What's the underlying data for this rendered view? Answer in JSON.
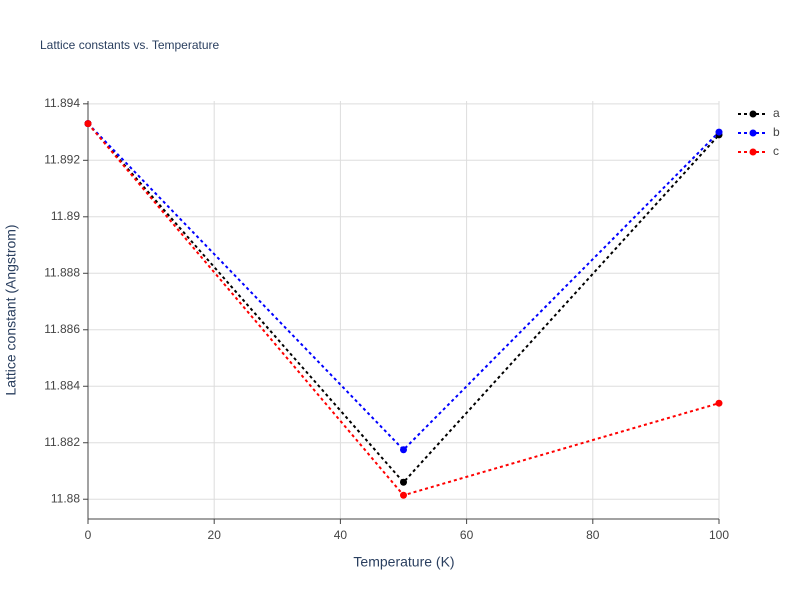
{
  "chart_data": {
    "type": "line",
    "title": "Lattice constants vs. Temperature",
    "x_label": "Temperature (K)",
    "y_label": "Lattice constant (Angstrom)",
    "x": [
      0,
      50,
      100
    ],
    "series": [
      {
        "name": "a",
        "color": "#000000",
        "values": [
          11.8933,
          11.8806,
          11.8929
        ]
      },
      {
        "name": "b",
        "color": "#0000ff",
        "values": [
          11.8933,
          11.88175,
          11.893
        ]
      },
      {
        "name": "c",
        "color": "#ff0000",
        "values": [
          11.8933,
          11.88014,
          11.8834
        ]
      }
    ],
    "xlim": [
      0,
      100
    ],
    "xticks": [
      0,
      20,
      40,
      60,
      80,
      100
    ],
    "ylim": [
      11.8793,
      11.8941
    ],
    "yticks": [
      11.88,
      11.882,
      11.884,
      11.886,
      11.888,
      11.89,
      11.892,
      11.894
    ],
    "grid": true,
    "legend": "top-right",
    "line_style": "dotted"
  }
}
